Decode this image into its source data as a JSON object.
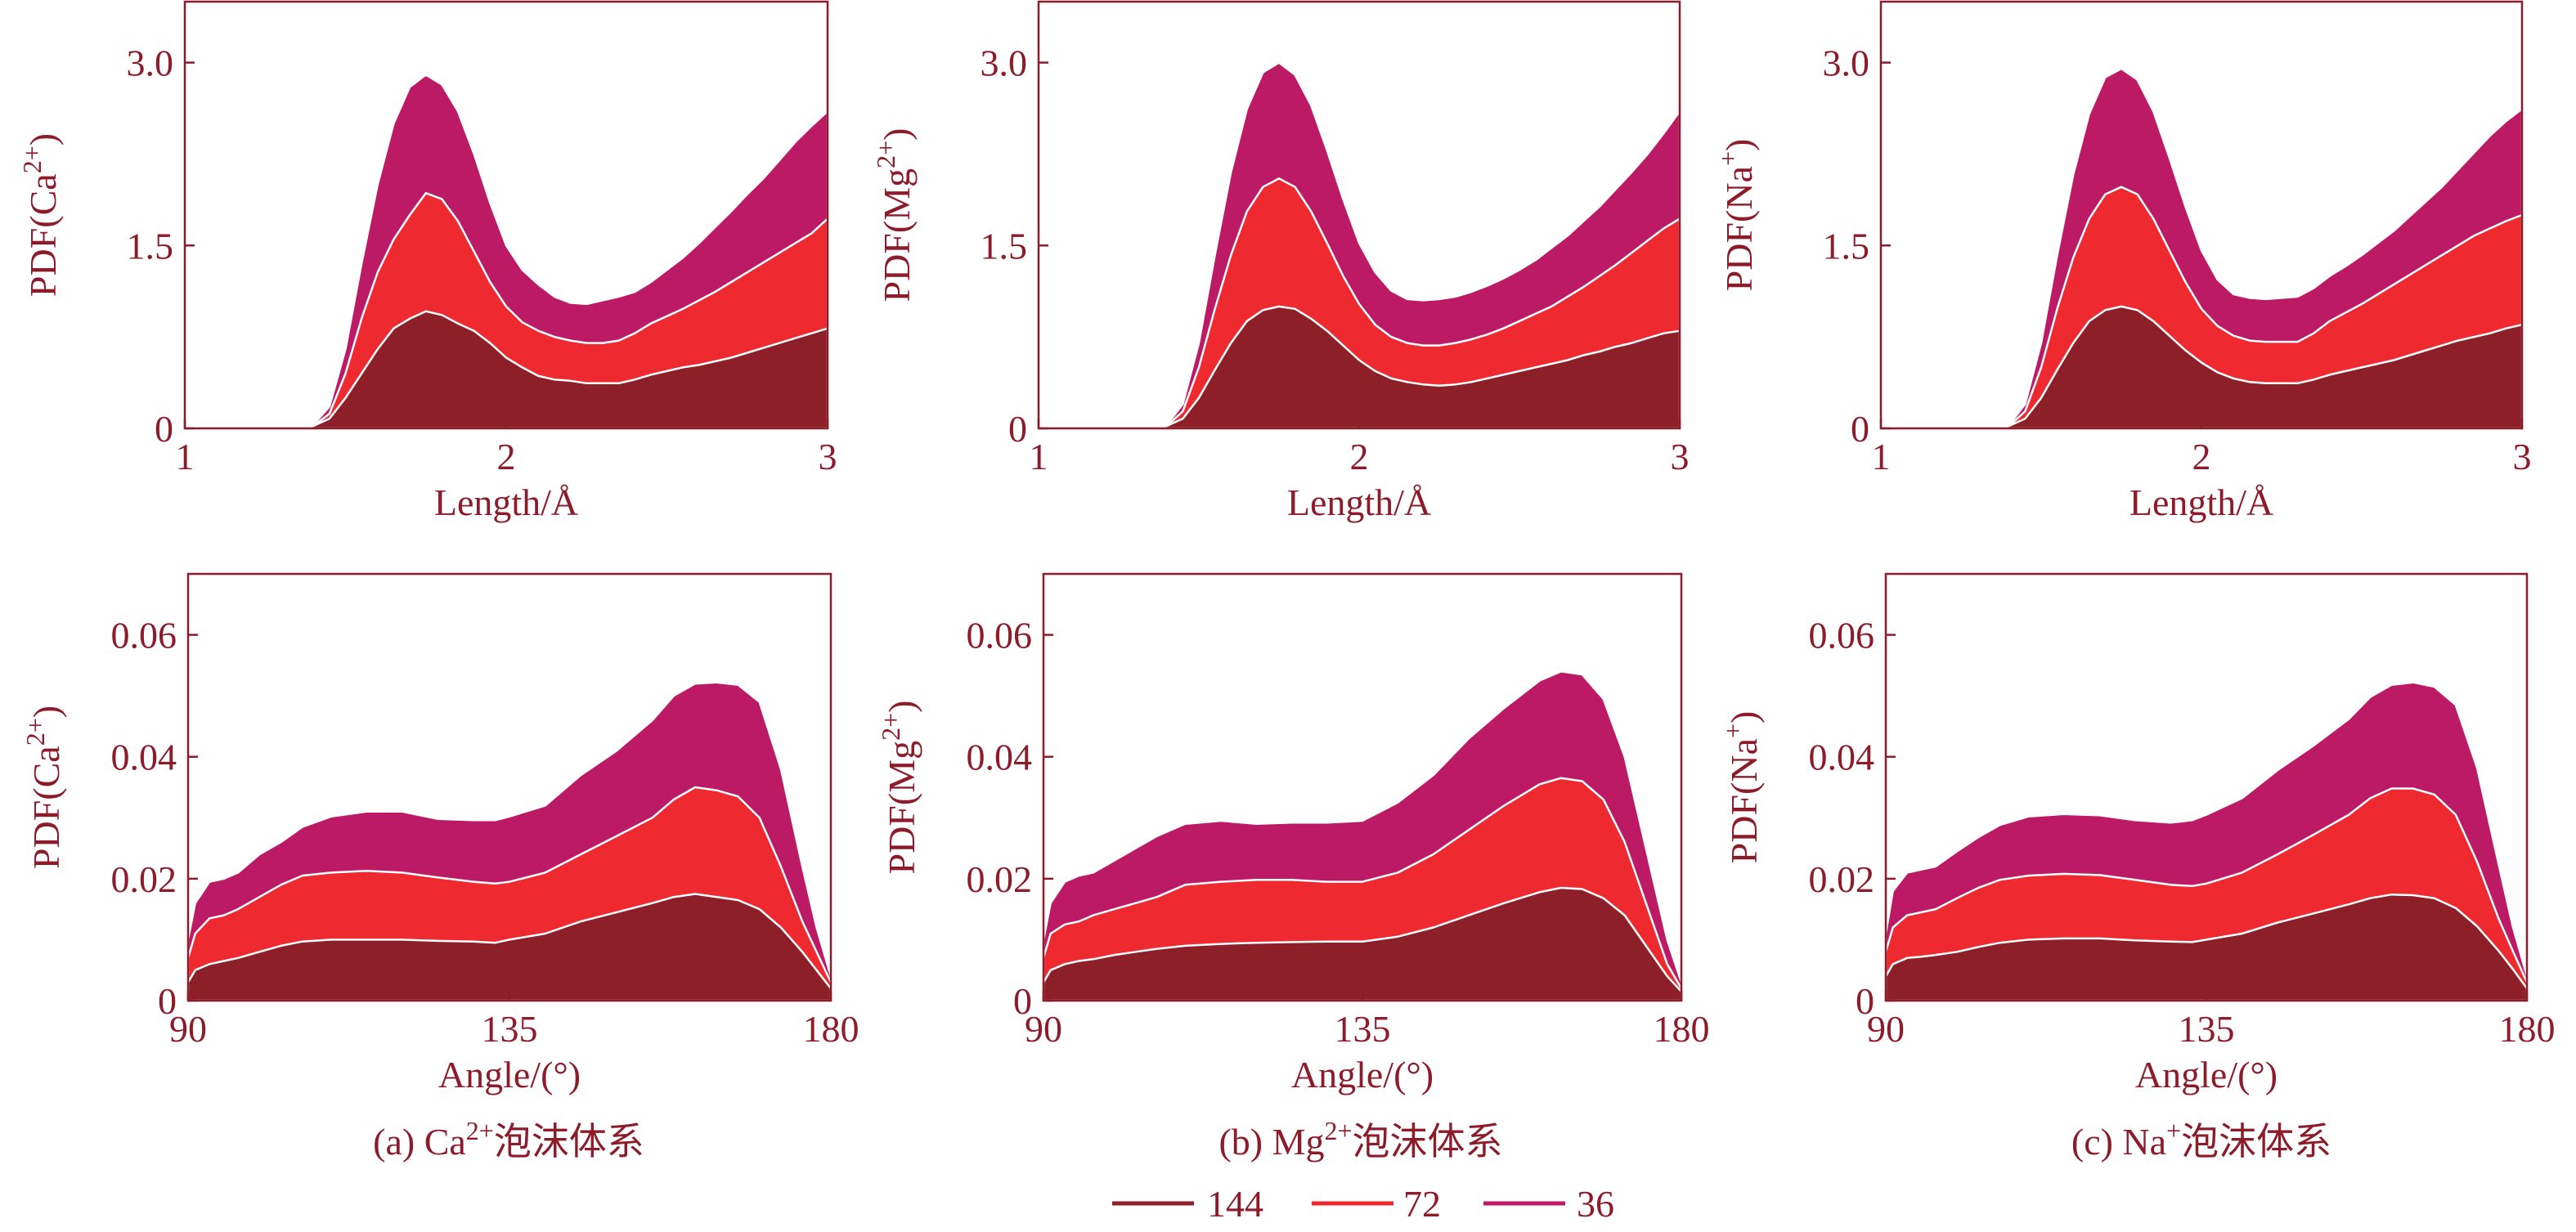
{
  "colors": {
    "axis": "#8c1c2a",
    "s144": "#8d1f28",
    "s72": "#ee2a30",
    "s36": "#bd1a66"
  },
  "legend": [
    {
      "label": "144",
      "color": "#8d1f28"
    },
    {
      "label": "72",
      "color": "#ee2a30"
    },
    {
      "label": "36",
      "color": "#bd1a66"
    }
  ],
  "captions": [
    {
      "prefix": "(a) Ca",
      "sup": "2+",
      "suffix": "泡沫体系"
    },
    {
      "prefix": "(b) Mg",
      "sup": "2+",
      "suffix": "泡沫体系"
    },
    {
      "prefix": "(c) Na",
      "sup": "+",
      "suffix": "泡沫体系"
    }
  ],
  "ylabels": [
    {
      "prefix": "PDF(Ca",
      "sup": "2+",
      "suffix": ")"
    },
    {
      "prefix": "PDF(Mg",
      "sup": "2+",
      "suffix": ")"
    },
    {
      "prefix": "PDF(Na",
      "sup": "+",
      "suffix": ")"
    }
  ],
  "chart_data": [
    {
      "type": "area",
      "stacked": true,
      "panel": "a-top",
      "xlabel": "Length/Å",
      "xlim": [
        1,
        3
      ],
      "ylim": [
        0,
        3.5
      ],
      "xticks": [
        1,
        2,
        3
      ],
      "yticks": [
        0,
        1.5,
        3.0
      ],
      "ytick_labels": [
        "0",
        "1.5",
        "3.0"
      ],
      "x": [
        1.0,
        1.2,
        1.3,
        1.35,
        1.4,
        1.45,
        1.5,
        1.55,
        1.6,
        1.65,
        1.7,
        1.75,
        1.8,
        1.85,
        1.9,
        1.95,
        2.0,
        2.05,
        2.1,
        2.15,
        2.2,
        2.25,
        2.3,
        2.35,
        2.4,
        2.45,
        2.5,
        2.55,
        2.6,
        2.65,
        2.7,
        2.75,
        2.8,
        2.85,
        2.9,
        2.95,
        3.0
      ],
      "series": [
        {
          "name": "144",
          "values": [
            0,
            0,
            0,
            0,
            0.02,
            0.08,
            0.25,
            0.45,
            0.65,
            0.82,
            0.9,
            0.96,
            0.93,
            0.86,
            0.8,
            0.7,
            0.58,
            0.5,
            0.43,
            0.4,
            0.39,
            0.37,
            0.37,
            0.37,
            0.4,
            0.44,
            0.47,
            0.5,
            0.52,
            0.55,
            0.58,
            0.62,
            0.66,
            0.7,
            0.74,
            0.78,
            0.82
          ]
        },
        {
          "name": "72",
          "values": [
            0,
            0,
            0,
            0,
            0.02,
            0.12,
            0.45,
            0.9,
            1.28,
            1.55,
            1.75,
            1.93,
            1.88,
            1.7,
            1.45,
            1.2,
            1.0,
            0.87,
            0.8,
            0.75,
            0.72,
            0.7,
            0.7,
            0.72,
            0.78,
            0.86,
            0.92,
            0.98,
            1.05,
            1.12,
            1.2,
            1.28,
            1.36,
            1.44,
            1.52,
            1.6,
            1.72
          ]
        },
        {
          "name": "36",
          "values": [
            0,
            0,
            0,
            0,
            0.03,
            0.18,
            0.65,
            1.35,
            2.0,
            2.5,
            2.8,
            2.9,
            2.82,
            2.6,
            2.25,
            1.85,
            1.5,
            1.3,
            1.18,
            1.08,
            1.03,
            1.02,
            1.05,
            1.08,
            1.12,
            1.2,
            1.3,
            1.4,
            1.52,
            1.65,
            1.78,
            1.92,
            2.05,
            2.2,
            2.35,
            2.48,
            2.6
          ]
        }
      ]
    },
    {
      "type": "area",
      "stacked": true,
      "panel": "b-top",
      "xlabel": "Length/Å",
      "xlim": [
        1,
        3
      ],
      "ylim": [
        0,
        3.5
      ],
      "xticks": [
        1,
        2,
        3
      ],
      "yticks": [
        0,
        1.5,
        3.0
      ],
      "ytick_labels": [
        "0",
        "1.5",
        "3.0"
      ],
      "x": [
        1.0,
        1.2,
        1.3,
        1.35,
        1.4,
        1.45,
        1.5,
        1.55,
        1.6,
        1.65,
        1.7,
        1.75,
        1.8,
        1.85,
        1.9,
        1.95,
        2.0,
        2.05,
        2.1,
        2.15,
        2.2,
        2.25,
        2.3,
        2.35,
        2.4,
        2.45,
        2.5,
        2.55,
        2.6,
        2.65,
        2.7,
        2.75,
        2.8,
        2.85,
        2.9,
        2.95,
        3.0
      ],
      "series": [
        {
          "name": "144",
          "values": [
            0,
            0,
            0,
            0,
            0.02,
            0.08,
            0.25,
            0.48,
            0.7,
            0.88,
            0.97,
            1.0,
            0.98,
            0.9,
            0.8,
            0.68,
            0.56,
            0.47,
            0.41,
            0.38,
            0.36,
            0.35,
            0.36,
            0.38,
            0.41,
            0.44,
            0.47,
            0.5,
            0.53,
            0.56,
            0.6,
            0.63,
            0.67,
            0.7,
            0.74,
            0.78,
            0.8
          ]
        },
        {
          "name": "72",
          "values": [
            0,
            0,
            0,
            0,
            0.02,
            0.14,
            0.5,
            0.98,
            1.42,
            1.78,
            1.98,
            2.05,
            1.98,
            1.78,
            1.52,
            1.25,
            1.02,
            0.85,
            0.75,
            0.7,
            0.68,
            0.68,
            0.7,
            0.73,
            0.77,
            0.82,
            0.88,
            0.94,
            1.0,
            1.08,
            1.16,
            1.25,
            1.34,
            1.44,
            1.54,
            1.64,
            1.72
          ]
        },
        {
          "name": "36",
          "values": [
            0,
            0,
            0,
            0,
            0.03,
            0.2,
            0.7,
            1.42,
            2.1,
            2.62,
            2.92,
            3.0,
            2.9,
            2.65,
            2.28,
            1.88,
            1.52,
            1.28,
            1.13,
            1.06,
            1.05,
            1.06,
            1.08,
            1.12,
            1.17,
            1.23,
            1.3,
            1.38,
            1.48,
            1.58,
            1.7,
            1.82,
            1.96,
            2.1,
            2.25,
            2.42,
            2.6
          ]
        }
      ]
    },
    {
      "type": "area",
      "stacked": true,
      "panel": "c-top",
      "xlabel": "Length/Å",
      "xlim": [
        1,
        3
      ],
      "ylim": [
        0,
        3.5
      ],
      "xticks": [
        1,
        2,
        3
      ],
      "yticks": [
        0,
        1.5,
        3.0
      ],
      "ytick_labels": [
        "0",
        "1.5",
        "3.0"
      ],
      "x": [
        1.0,
        1.2,
        1.3,
        1.35,
        1.4,
        1.45,
        1.5,
        1.55,
        1.6,
        1.65,
        1.7,
        1.75,
        1.8,
        1.85,
        1.9,
        1.95,
        2.0,
        2.05,
        2.1,
        2.15,
        2.2,
        2.25,
        2.3,
        2.35,
        2.4,
        2.45,
        2.5,
        2.55,
        2.6,
        2.65,
        2.7,
        2.75,
        2.8,
        2.85,
        2.9,
        2.95,
        3.0
      ],
      "series": [
        {
          "name": "144",
          "values": [
            0,
            0,
            0,
            0,
            0.02,
            0.08,
            0.25,
            0.48,
            0.7,
            0.88,
            0.97,
            1.0,
            0.97,
            0.88,
            0.76,
            0.64,
            0.54,
            0.46,
            0.41,
            0.38,
            0.37,
            0.37,
            0.37,
            0.4,
            0.44,
            0.47,
            0.5,
            0.53,
            0.56,
            0.6,
            0.64,
            0.68,
            0.72,
            0.75,
            0.78,
            0.82,
            0.85
          ]
        },
        {
          "name": "72",
          "values": [
            0,
            0,
            0,
            0,
            0.02,
            0.14,
            0.5,
            0.98,
            1.4,
            1.72,
            1.92,
            1.98,
            1.92,
            1.72,
            1.46,
            1.2,
            0.98,
            0.84,
            0.76,
            0.72,
            0.71,
            0.71,
            0.71,
            0.78,
            0.88,
            0.95,
            1.02,
            1.1,
            1.18,
            1.26,
            1.34,
            1.42,
            1.5,
            1.58,
            1.64,
            1.7,
            1.75
          ]
        },
        {
          "name": "36",
          "values": [
            0,
            0,
            0,
            0,
            0.03,
            0.2,
            0.7,
            1.42,
            2.08,
            2.58,
            2.88,
            2.95,
            2.86,
            2.6,
            2.22,
            1.82,
            1.46,
            1.22,
            1.1,
            1.07,
            1.06,
            1.07,
            1.08,
            1.15,
            1.25,
            1.33,
            1.42,
            1.52,
            1.62,
            1.74,
            1.86,
            1.98,
            2.12,
            2.26,
            2.4,
            2.52,
            2.62
          ]
        }
      ]
    },
    {
      "type": "area",
      "stacked": true,
      "panel": "a-bottom",
      "xlabel": "Angle/(°)",
      "xlim": [
        90,
        180
      ],
      "ylim": [
        0,
        0.07
      ],
      "xticks": [
        90,
        135,
        180
      ],
      "yticks": [
        0,
        0.02,
        0.04,
        0.06
      ],
      "ytick_labels": [
        "0",
        "0.02",
        "0.04",
        "0.06"
      ],
      "x": [
        90,
        91,
        93,
        95,
        97,
        100,
        103,
        106,
        110,
        115,
        120,
        125,
        130,
        133,
        135,
        140,
        145,
        150,
        155,
        158,
        161,
        164,
        167,
        170,
        173,
        176,
        178,
        180
      ],
      "series": [
        {
          "name": "144",
          "values": [
            0.003,
            0.005,
            0.006,
            0.0065,
            0.007,
            0.008,
            0.009,
            0.0097,
            0.01,
            0.01,
            0.01,
            0.0098,
            0.0097,
            0.0095,
            0.01,
            0.011,
            0.013,
            0.0145,
            0.016,
            0.017,
            0.0175,
            0.017,
            0.0165,
            0.015,
            0.012,
            0.008,
            0.005,
            0.002
          ]
        },
        {
          "name": "72",
          "values": [
            0.007,
            0.011,
            0.0135,
            0.014,
            0.015,
            0.017,
            0.019,
            0.0205,
            0.021,
            0.0213,
            0.021,
            0.0202,
            0.0195,
            0.0192,
            0.0195,
            0.021,
            0.024,
            0.027,
            0.03,
            0.033,
            0.035,
            0.0345,
            0.0335,
            0.03,
            0.022,
            0.013,
            0.008,
            0.003
          ]
        },
        {
          "name": "36",
          "values": [
            0.01,
            0.016,
            0.0195,
            0.02,
            0.021,
            0.024,
            0.026,
            0.0285,
            0.0302,
            0.031,
            0.031,
            0.0298,
            0.0296,
            0.0296,
            0.0302,
            0.032,
            0.037,
            0.041,
            0.046,
            0.05,
            0.052,
            0.0522,
            0.0518,
            0.049,
            0.038,
            0.022,
            0.012,
            0.004
          ]
        }
      ]
    },
    {
      "type": "area",
      "stacked": true,
      "panel": "b-bottom",
      "xlabel": "Angle/(°)",
      "xlim": [
        90,
        180
      ],
      "ylim": [
        0,
        0.07
      ],
      "xticks": [
        90,
        135,
        180
      ],
      "yticks": [
        0,
        0.02,
        0.04,
        0.06
      ],
      "ytick_labels": [
        "0",
        "0.02",
        "0.04",
        "0.06"
      ],
      "x": [
        90,
        91,
        93,
        95,
        97,
        100,
        103,
        106,
        110,
        115,
        120,
        125,
        130,
        135,
        140,
        145,
        150,
        155,
        160,
        163,
        166,
        169,
        172,
        175,
        178,
        180
      ],
      "series": [
        {
          "name": "144",
          "values": [
            0.003,
            0.005,
            0.006,
            0.0065,
            0.0068,
            0.0075,
            0.008,
            0.0085,
            0.009,
            0.0093,
            0.0095,
            0.0096,
            0.0097,
            0.0097,
            0.0105,
            0.012,
            0.014,
            0.016,
            0.0178,
            0.0185,
            0.0183,
            0.0168,
            0.014,
            0.009,
            0.004,
            0.0015
          ]
        },
        {
          "name": "72",
          "values": [
            0.007,
            0.011,
            0.0125,
            0.013,
            0.014,
            0.015,
            0.016,
            0.017,
            0.019,
            0.0195,
            0.0198,
            0.0198,
            0.0195,
            0.0195,
            0.021,
            0.024,
            0.028,
            0.032,
            0.0355,
            0.0365,
            0.036,
            0.033,
            0.026,
            0.016,
            0.006,
            0.002
          ]
        },
        {
          "name": "36",
          "values": [
            0.01,
            0.016,
            0.0195,
            0.0205,
            0.021,
            0.023,
            0.025,
            0.027,
            0.029,
            0.0295,
            0.029,
            0.0292,
            0.0292,
            0.0295,
            0.0325,
            0.037,
            0.043,
            0.048,
            0.0525,
            0.054,
            0.0535,
            0.0495,
            0.04,
            0.025,
            0.01,
            0.003
          ]
        }
      ]
    },
    {
      "type": "area",
      "stacked": true,
      "panel": "c-bottom",
      "xlabel": "Angle/(°)",
      "xlim": [
        90,
        180
      ],
      "ylim": [
        0,
        0.07
      ],
      "xticks": [
        90,
        135,
        180
      ],
      "yticks": [
        0,
        0.02,
        0.04,
        0.06
      ],
      "ytick_labels": [
        "0",
        "0.02",
        "0.04",
        "0.06"
      ],
      "x": [
        90,
        91,
        93,
        95,
        97,
        100,
        103,
        106,
        110,
        115,
        120,
        125,
        130,
        133,
        135,
        140,
        145,
        150,
        155,
        158,
        161,
        164,
        167,
        170,
        173,
        176,
        178,
        180
      ],
      "series": [
        {
          "name": "144",
          "values": [
            0.004,
            0.006,
            0.007,
            0.0072,
            0.0075,
            0.008,
            0.0088,
            0.0095,
            0.01,
            0.0102,
            0.0102,
            0.0099,
            0.0097,
            0.0096,
            0.01,
            0.011,
            0.0128,
            0.0143,
            0.0158,
            0.0168,
            0.0174,
            0.0173,
            0.0168,
            0.0152,
            0.0122,
            0.0082,
            0.0052,
            0.002
          ]
        },
        {
          "name": "72",
          "values": [
            0.008,
            0.012,
            0.014,
            0.0145,
            0.015,
            0.0168,
            0.0185,
            0.0198,
            0.0205,
            0.0208,
            0.0206,
            0.0198,
            0.019,
            0.0188,
            0.0192,
            0.021,
            0.024,
            0.0272,
            0.0305,
            0.0332,
            0.0348,
            0.0348,
            0.0338,
            0.0305,
            0.0228,
            0.0135,
            0.0082,
            0.003
          ]
        },
        {
          "name": "36",
          "values": [
            0.011,
            0.018,
            0.021,
            0.0215,
            0.022,
            0.0245,
            0.0268,
            0.0288,
            0.0302,
            0.0306,
            0.0304,
            0.0296,
            0.0292,
            0.0296,
            0.0305,
            0.0332,
            0.0378,
            0.0418,
            0.0462,
            0.0498,
            0.0518,
            0.0522,
            0.0515,
            0.0485,
            0.0382,
            0.0225,
            0.0122,
            0.004
          ]
        }
      ]
    }
  ]
}
